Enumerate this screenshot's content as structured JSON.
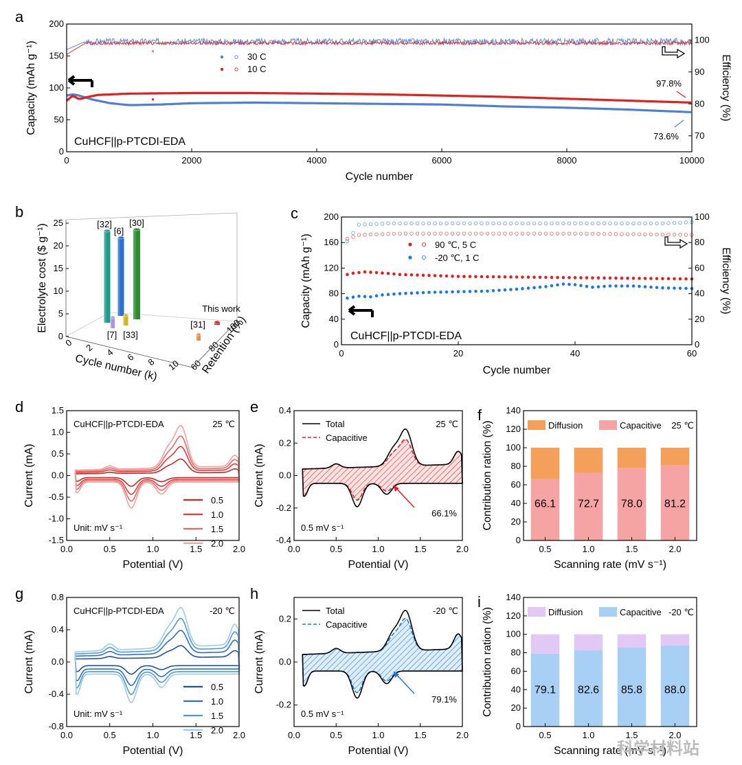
{
  "chart_data": [
    {
      "id": "a",
      "type": "scatter",
      "panel_label": "a",
      "xlabel": "Cycle number",
      "ylabel": "Capacity (mAh g⁻¹)",
      "y2label": "Efficiency (%)",
      "xlim": [
        0,
        10000
      ],
      "ylim": [
        0,
        200
      ],
      "y2lim": [
        65,
        105
      ],
      "xticks": [
        "0",
        "2000",
        "4000",
        "6000",
        "8000",
        "10000"
      ],
      "yticks": [
        "0",
        "50",
        "100",
        "150",
        "200"
      ],
      "y2ticks": [
        "70",
        "80",
        "90",
        "100"
      ],
      "label": "CuHCF||p-PTCDI-EDA",
      "series": [
        {
          "name": "30 C",
          "color": "#4f7fd1",
          "capacity": [
            [
              0,
              88
            ],
            [
              100,
              90
            ],
            [
              200,
              88
            ],
            [
              400,
              82
            ],
            [
              700,
              76
            ],
            [
              1000,
              73
            ],
            [
              1500,
              74
            ],
            [
              2000,
              76
            ],
            [
              3000,
              77
            ],
            [
              4000,
              76
            ],
            [
              5000,
              75
            ],
            [
              6000,
              74
            ],
            [
              7000,
              71
            ],
            [
              8000,
              69
            ],
            [
              9000,
              66
            ],
            [
              10000,
              62
            ]
          ],
          "efficiency_pct": 99.5
        },
        {
          "name": "10 C",
          "color": "#e22020",
          "capacity": [
            [
              0,
              80
            ],
            [
              100,
              88
            ],
            [
              200,
              82
            ],
            [
              300,
              85
            ],
            [
              500,
              89
            ],
            [
              1000,
              91
            ],
            [
              2000,
              92
            ],
            [
              3000,
              92
            ],
            [
              4000,
              91
            ],
            [
              5000,
              90
            ],
            [
              6000,
              88
            ],
            [
              7000,
              86
            ],
            [
              8000,
              83
            ],
            [
              9000,
              80
            ],
            [
              10000,
              77
            ]
          ],
          "efficiency_pct": 99.0
        }
      ],
      "annotations": [
        {
          "text": "97.8%",
          "color": "#e22020"
        },
        {
          "text": "73.6%",
          "color": "#4f7fd1"
        }
      ]
    },
    {
      "id": "b",
      "type": "bar",
      "panel_label": "b",
      "ylabel": "Electrolyte cost ($ g⁻¹)",
      "xlabel": "Cycle number (k)",
      "zlabel": "Retention (%)",
      "yticks": [
        "0",
        "5",
        "10",
        "15",
        "20",
        "25"
      ],
      "xticks": [
        "0",
        "2",
        "4",
        "6",
        "8",
        "10"
      ],
      "zticks": [
        "60",
        "80",
        "100"
      ],
      "bars": [
        {
          "name": "[32]",
          "color": "#1f9a8a"
        },
        {
          "name": "[6]",
          "color": "#2b6fcf"
        },
        {
          "name": "[30]",
          "color": "#2e8b2e"
        },
        {
          "name": "[7]",
          "color": "#b48ee0"
        },
        {
          "name": "[33]",
          "color": "#d4b21a"
        },
        {
          "name": "[31]",
          "color": "#f08a3c"
        },
        {
          "name": "This work",
          "color": "#d62020"
        }
      ]
    },
    {
      "id": "c",
      "type": "scatter",
      "panel_label": "c",
      "xlabel": "Cycle number",
      "ylabel": "Capacity (mAh g⁻¹)",
      "y2label": "Efficiency (%)",
      "xlim": [
        0,
        60
      ],
      "ylim": [
        0,
        200
      ],
      "y2lim": [
        0,
        100
      ],
      "xticks": [
        "0",
        "20",
        "40",
        "60"
      ],
      "yticks": [
        "0",
        "40",
        "80",
        "120",
        "160",
        "200"
      ],
      "y2ticks": [
        "0",
        "20",
        "40",
        "60",
        "80",
        "100"
      ],
      "label": "CuHCF||p-PTCDI-EDA",
      "series": [
        {
          "name": "90 ℃, 5 C",
          "color": "#e22020",
          "capacity": [
            [
              1,
              110
            ],
            [
              2,
              112
            ],
            [
              3,
              113
            ],
            [
              4,
              114
            ],
            [
              6,
              113
            ],
            [
              10,
              110
            ],
            [
              20,
              107
            ],
            [
              30,
              106
            ],
            [
              40,
              105
            ],
            [
              50,
              104
            ],
            [
              60,
              103
            ]
          ],
          "efficiency_pct": [
            [
              1,
              83
            ],
            [
              3,
              86
            ],
            [
              10,
              87
            ],
            [
              20,
              87
            ],
            [
              40,
              87
            ],
            [
              60,
              86
            ]
          ]
        },
        {
          "name": "-20 ℃, 1 C",
          "color": "#1f7ad6",
          "capacity": [
            [
              1,
              73
            ],
            [
              3,
              76
            ],
            [
              5,
              75
            ],
            [
              7,
              78
            ],
            [
              10,
              80
            ],
            [
              15,
              82
            ],
            [
              20,
              83
            ],
            [
              25,
              84
            ],
            [
              30,
              87
            ],
            [
              35,
              91
            ],
            [
              38,
              95
            ],
            [
              40,
              94
            ],
            [
              43,
              90
            ],
            [
              46,
              92
            ],
            [
              50,
              92
            ],
            [
              55,
              89
            ],
            [
              60,
              88
            ]
          ],
          "efficiency_pct": [
            [
              1,
              81
            ],
            [
              3,
              94
            ],
            [
              8,
              95
            ],
            [
              20,
              95
            ],
            [
              40,
              95
            ],
            [
              55,
              95
            ],
            [
              60,
              96
            ]
          ]
        }
      ]
    },
    {
      "id": "d",
      "type": "line",
      "panel_label": "d",
      "xlabel": "Potential (V)",
      "ylabel": "Current (mA)",
      "xlim": [
        0.0,
        2.0
      ],
      "ylim": [
        -1.5,
        1.5
      ],
      "xticks": [
        "0.0",
        "0.5",
        "1.0",
        "1.5",
        "2.0"
      ],
      "yticks": [
        "-1.5",
        "-1.0",
        "-0.5",
        "0.0",
        "0.5",
        "1.0",
        "1.5"
      ],
      "title": "CuHCF||p-PTCDI-EDA",
      "temperature": "25 ℃",
      "unit_note": "Unit: mV s⁻¹",
      "series": [
        {
          "name": "0.5",
          "color": "#c62828",
          "scale": 0.33
        },
        {
          "name": "1.0",
          "color": "#e53935",
          "scale": 0.58
        },
        {
          "name": "1.5",
          "color": "#ef6666",
          "scale": 0.79
        },
        {
          "name": "2.0",
          "color": "#f4a0a0",
          "scale": 1.0
        }
      ],
      "peak_upper": 1.23,
      "peak_lower": -0.8
    },
    {
      "id": "e",
      "type": "line",
      "panel_label": "e",
      "xlabel": "Potential (V)",
      "ylabel": "Current (mA)",
      "xlim": [
        0.0,
        2.0
      ],
      "ylim": [
        -0.4,
        0.4
      ],
      "xticks": [
        "0.0",
        "0.5",
        "1.0",
        "1.5",
        "2.0"
      ],
      "yticks": [
        "-0.4",
        "-0.2",
        "0.0",
        "0.2",
        "0.4"
      ],
      "temperature": "25 ℃",
      "rate_note": "0.5 mV s⁻¹",
      "legend": [
        {
          "name": "Total",
          "color": "#000000"
        },
        {
          "name": "Capacitive",
          "color": "#e22020"
        }
      ],
      "percent": "66.1%",
      "accent": "#e22020"
    },
    {
      "id": "f",
      "type": "bar",
      "panel_label": "f",
      "xlabel": "Scanning rate (mV s⁻¹)",
      "ylabel": "Contribution ration (%)",
      "ylim": [
        0,
        140
      ],
      "yticks": [
        "0",
        "20",
        "40",
        "60",
        "80",
        "100",
        "120",
        "140"
      ],
      "categories": [
        "0.5",
        "1.0",
        "1.5",
        "2.0"
      ],
      "temperature": "25 ℃",
      "series": [
        {
          "name": "Capacitive",
          "color": "#f6a3a3",
          "values": [
            66.1,
            72.7,
            78.0,
            81.2
          ],
          "labels": [
            "66.1",
            "72.7",
            "78.0",
            "81.2"
          ]
        },
        {
          "name": "Diffusion",
          "color": "#f5a05a",
          "values": [
            33.9,
            27.3,
            22.0,
            18.8
          ]
        }
      ]
    },
    {
      "id": "g",
      "type": "line",
      "panel_label": "g",
      "xlabel": "Potential (V)",
      "ylabel": "Current (mA)",
      "xlim": [
        0.0,
        2.0
      ],
      "ylim": [
        -0.8,
        0.8
      ],
      "xticks": [
        "0.0",
        "0.5",
        "1.0",
        "1.5",
        "2.0"
      ],
      "yticks": [
        "-0.8",
        "-0.4",
        "0.0",
        "0.4",
        "0.8"
      ],
      "title": "CuHCF||p-PTCDI-EDA",
      "temperature": "-20 ℃",
      "unit_note": "Unit: mV s⁻¹",
      "series": [
        {
          "name": "0.5",
          "color": "#1f4f9e",
          "scale": 0.3
        },
        {
          "name": "1.0",
          "color": "#2b6fc4",
          "scale": 0.58
        },
        {
          "name": "1.5",
          "color": "#4a98e0",
          "scale": 0.8
        },
        {
          "name": "2.0",
          "color": "#9cc9f0",
          "scale": 1.0
        }
      ],
      "peak_upper": 0.62,
      "peak_lower": -0.47
    },
    {
      "id": "h",
      "type": "line",
      "panel_label": "h",
      "xlabel": "Potential (V)",
      "ylabel": "Current (mA)",
      "xlim": [
        0.0,
        2.0
      ],
      "ylim": [
        -0.3,
        0.3
      ],
      "xticks": [
        "0.0",
        "0.5",
        "1.0",
        "1.5",
        "2.0"
      ],
      "yticks": [
        "-0.2",
        "0.0",
        "0.2"
      ],
      "temperature": "-20 ℃",
      "rate_note": "0.5 mV s⁻¹",
      "legend": [
        {
          "name": "Total",
          "color": "#000000"
        },
        {
          "name": "Capacitive",
          "color": "#1f7ad6"
        }
      ],
      "percent": "79.1%",
      "accent": "#1f7ad6"
    },
    {
      "id": "i",
      "type": "bar",
      "panel_label": "i",
      "xlabel": "Scanning rate (mV s⁻¹)",
      "ylabel": "Contribution ration (%)",
      "ylim": [
        0,
        140
      ],
      "yticks": [
        "0",
        "20",
        "40",
        "60",
        "80",
        "100",
        "120",
        "140"
      ],
      "categories": [
        "0.5",
        "1.0",
        "1.5",
        "2.0"
      ],
      "temperature": "-20 ℃",
      "series": [
        {
          "name": "Capacitive",
          "color": "#a8d0f5",
          "values": [
            79.1,
            82.6,
            85.8,
            88.0
          ],
          "labels": [
            "79.1",
            "82.6",
            "85.8",
            "88.0"
          ]
        },
        {
          "name": "Diffusion",
          "color": "#e2c8f5",
          "values": [
            20.9,
            17.4,
            14.2,
            12.0
          ]
        }
      ]
    }
  ],
  "watermark": "科学材料站"
}
